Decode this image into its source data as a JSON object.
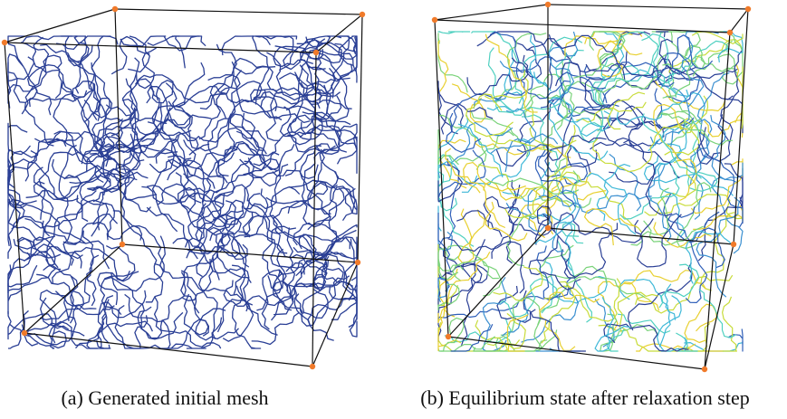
{
  "figure": {
    "panels": [
      {
        "caption": "(a) Generated initial mesh"
      },
      {
        "caption": "(b) Equilibrium state after relaxation step"
      }
    ]
  }
}
